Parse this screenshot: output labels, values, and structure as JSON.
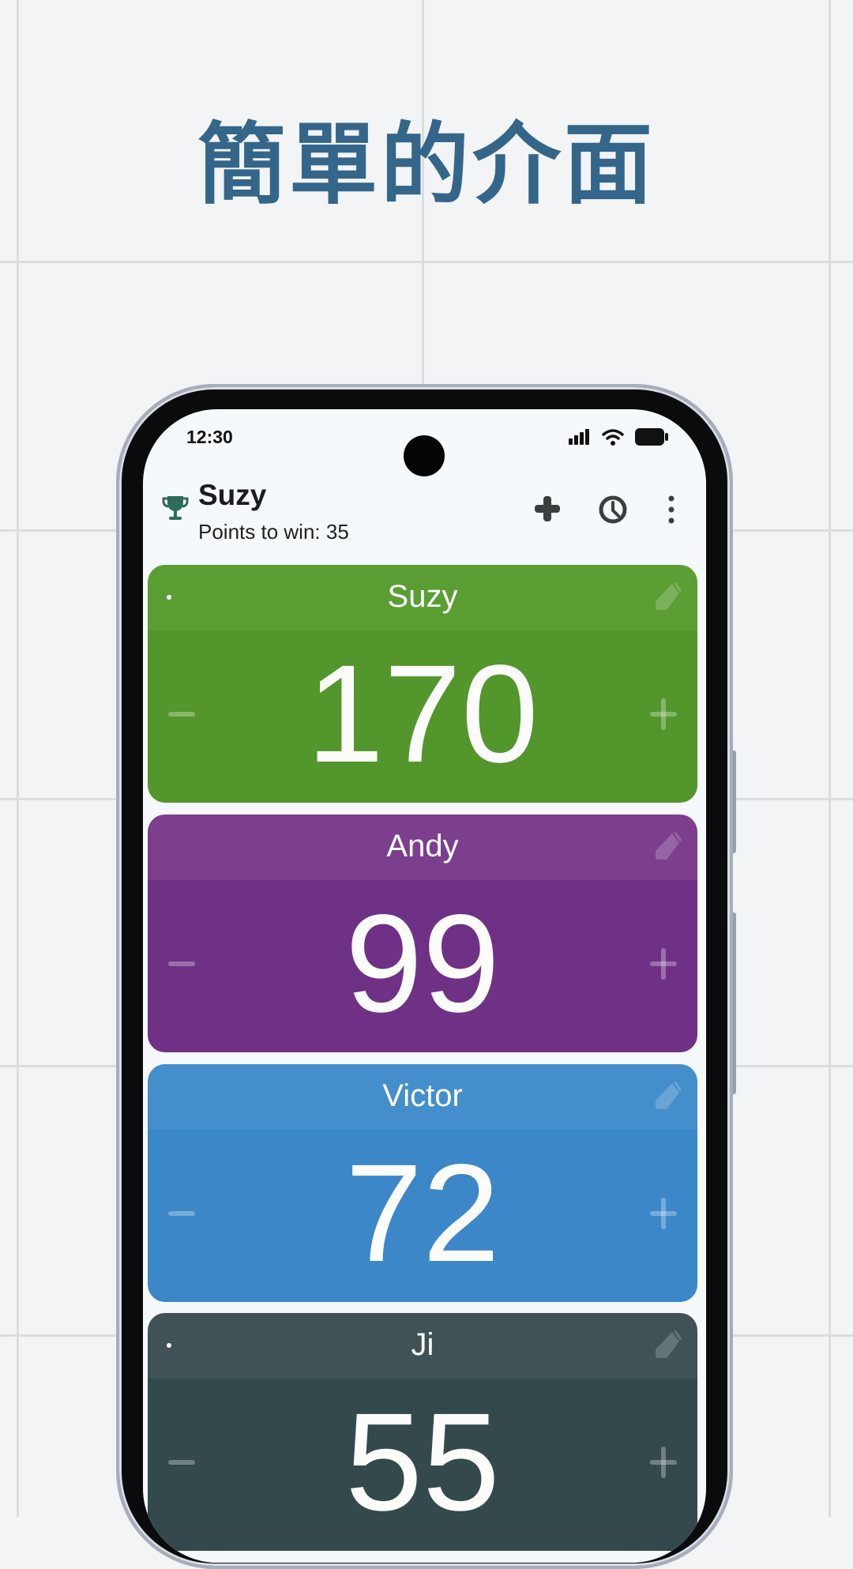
{
  "headline": "簡單的介面",
  "status_bar": {
    "time": "12:30",
    "icons": [
      "signal-icon",
      "wifi-icon",
      "battery-icon"
    ]
  },
  "header": {
    "leader_name": "Suzy",
    "points_to_win": "Points to win: 35",
    "actions": [
      "add-player-icon",
      "history-icon",
      "more-vert-icon"
    ]
  },
  "players": [
    {
      "name": "Suzy",
      "score": "170",
      "dot": true,
      "header_color": "#5a9e34",
      "body_color": "#52962c"
    },
    {
      "name": "Andy",
      "score": "99",
      "dot": false,
      "header_color": "#7b3f8e",
      "body_color": "#6f3186"
    },
    {
      "name": "Victor",
      "score": "72",
      "dot": false,
      "header_color": "#448ecb",
      "body_color": "#3c87c7"
    },
    {
      "name": "Ji",
      "score": "55",
      "dot": true,
      "header_color": "#3f5255",
      "body_color": "#34494c"
    }
  ],
  "colors": {
    "headline": "#34668a",
    "trophy": "#2d6b5a"
  }
}
